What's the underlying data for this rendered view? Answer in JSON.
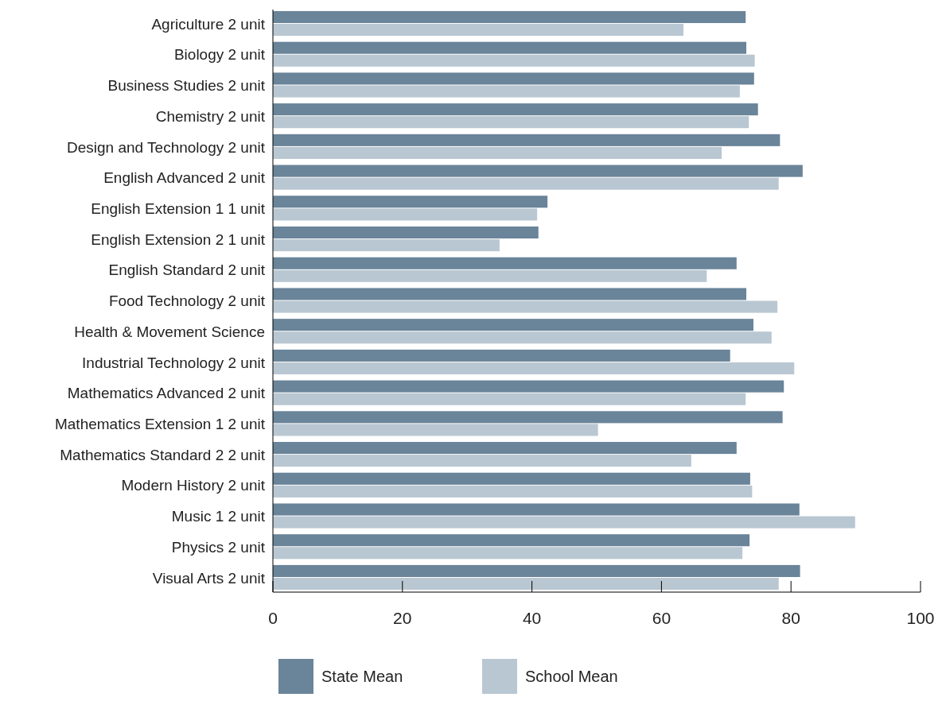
{
  "chart_data": {
    "type": "bar",
    "orientation": "horizontal",
    "categories": [
      "Agriculture 2 unit",
      "Biology 2 unit",
      "Business Studies 2 unit",
      "Chemistry 2 unit",
      "Design and Technology 2 unit",
      "English Advanced 2 unit",
      "English Extension 1 1 unit",
      "English Extension 2 1 unit",
      "English Standard 2 unit",
      "Food Technology 2 unit",
      "Health & Movement Science",
      "Industrial Technology 2 unit",
      "Mathematics Advanced 2 unit",
      "Mathematics Extension 1 2 unit",
      "Mathematics Standard 2 2 unit",
      "Modern History 2 unit",
      "Music 1 2 unit",
      "Physics 2 unit",
      "Visual Arts 2 unit"
    ],
    "series": [
      {
        "name": "State Mean",
        "color": "#6a8499",
        "values": [
          73.0,
          73.1,
          74.3,
          74.9,
          78.3,
          81.8,
          42.4,
          41.0,
          71.6,
          73.1,
          74.2,
          70.6,
          78.9,
          78.7,
          71.6,
          73.7,
          81.3,
          73.6,
          81.4
        ]
      },
      {
        "name": "School Mean",
        "color": "#b9c7d2",
        "values": [
          63.4,
          74.4,
          72.1,
          73.5,
          69.3,
          78.1,
          40.8,
          35.0,
          67.0,
          77.9,
          77.0,
          80.5,
          73.0,
          50.2,
          64.6,
          74.0,
          89.9,
          72.5,
          78.1
        ]
      }
    ],
    "xlim": [
      0,
      100
    ],
    "xticks": [
      0,
      20,
      40,
      60,
      80,
      100
    ],
    "grid": false,
    "legend": "bottom"
  }
}
